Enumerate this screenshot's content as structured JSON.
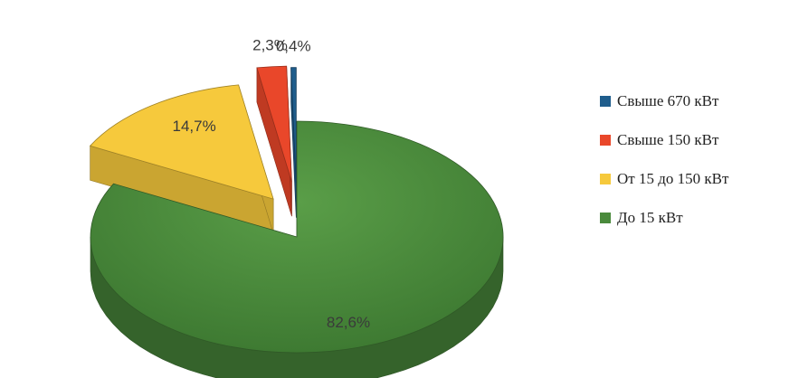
{
  "chart_data": {
    "type": "pie",
    "style": "3d-exploded",
    "series": [
      {
        "name": "До 15 кВт",
        "value": 82.6,
        "label": "82,6%",
        "color": "#4a8a3c"
      },
      {
        "name": "От 15 до 150 кВт",
        "value": 14.7,
        "label": "14,7%",
        "color": "#f6c93c"
      },
      {
        "name": "Свыше 150 кВт",
        "value": 2.3,
        "label": "2,3%",
        "color": "#e9472a"
      },
      {
        "name": "Свыше 670 кВт",
        "value": 0.4,
        "label": "0,4%",
        "color": "#1f5d8c"
      }
    ],
    "legend": {
      "position": "right",
      "entries": [
        "Свыше 670 кВт",
        "Свыше 150 кВт",
        "От 15 до 150 кВт",
        "До 15 кВт"
      ]
    }
  }
}
